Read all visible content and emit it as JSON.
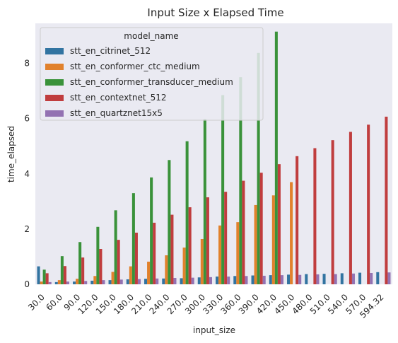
{
  "chart_data": {
    "type": "bar",
    "title": "Input Size x Elapsed Time",
    "xlabel": "input_size",
    "ylabel": "time_elapsed",
    "ylim": [
      0,
      9.45
    ],
    "yticks": [
      0,
      2,
      4,
      6,
      8
    ],
    "grid": false,
    "legend_title": "model_name",
    "legend_placement": "upper-left",
    "categories": [
      "30.0",
      "60.0",
      "90.0",
      "120.0",
      "150.0",
      "180.0",
      "210.0",
      "240.0",
      "270.0",
      "300.0",
      "330.0",
      "360.0",
      "390.0",
      "420.0",
      "450.0",
      "480.0",
      "510.0",
      "540.0",
      "570.0",
      "594.32"
    ],
    "series": [
      {
        "name": "stt_en_citrinet_512",
        "color": "#3274a1",
        "values": [
          0.65,
          0.08,
          0.1,
          0.13,
          0.15,
          0.18,
          0.2,
          0.21,
          0.22,
          0.25,
          0.28,
          0.3,
          0.32,
          0.33,
          0.35,
          0.37,
          0.38,
          0.4,
          0.42,
          0.44
        ]
      },
      {
        "name": "stt_en_conformer_ctc_medium",
        "color": "#e1812c",
        "values": [
          0.1,
          0.15,
          0.2,
          0.3,
          0.45,
          0.65,
          0.82,
          1.05,
          1.33,
          1.64,
          2.13,
          2.25,
          2.87,
          3.22,
          3.7,
          null,
          null,
          null,
          null,
          null
        ]
      },
      {
        "name": "stt_en_conformer_transducer_medium",
        "color": "#3a923a",
        "values": [
          0.53,
          1.02,
          1.53,
          2.08,
          2.68,
          3.3,
          3.87,
          4.5,
          5.18,
          5.99,
          6.85,
          7.5,
          8.38,
          9.15,
          null,
          null,
          null,
          null,
          null,
          null
        ]
      },
      {
        "name": "stt_en_contextnet_512",
        "color": "#c03d3e",
        "values": [
          0.4,
          0.66,
          0.97,
          1.28,
          1.61,
          1.87,
          2.23,
          2.52,
          2.79,
          3.15,
          3.35,
          3.75,
          4.04,
          4.35,
          4.64,
          4.93,
          5.22,
          5.52,
          5.78,
          6.07
        ]
      },
      {
        "name": "stt_en_quartznet15x5",
        "color": "#9372b2",
        "values": [
          0.08,
          0.1,
          0.12,
          0.15,
          0.17,
          0.19,
          0.21,
          0.23,
          0.24,
          0.26,
          0.28,
          0.3,
          0.31,
          0.33,
          0.34,
          0.36,
          0.37,
          0.39,
          0.41,
          0.43
        ]
      }
    ]
  }
}
